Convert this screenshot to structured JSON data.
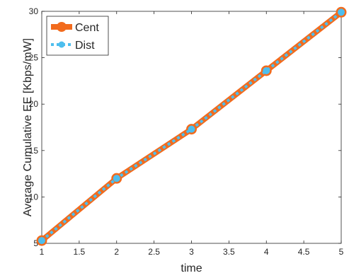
{
  "chart_data": {
    "type": "line",
    "xlabel": "time",
    "ylabel": "Average Cumulative EE [Kbps/mW]",
    "xlim": [
      1,
      5
    ],
    "ylim": [
      5,
      30
    ],
    "x_ticks": [
      "1",
      "1.5",
      "2",
      "2.5",
      "3",
      "3.5",
      "4",
      "4.5",
      "5"
    ],
    "y_ticks": [
      "5",
      "10",
      "15",
      "20",
      "25",
      "30"
    ],
    "x": [
      1,
      2,
      3,
      4,
      5
    ],
    "series": [
      {
        "name": "Cent",
        "values": [
          5.3,
          12.0,
          17.3,
          23.6,
          29.9
        ],
        "color": "#F26B1D",
        "style": "solid",
        "marker": "circle"
      },
      {
        "name": "Dist",
        "values": [
          5.3,
          12.0,
          17.3,
          23.6,
          29.9
        ],
        "color": "#4DBEEE",
        "style": "dotted",
        "marker": "circle"
      }
    ],
    "legend": {
      "placement": "top-left"
    },
    "grid": false,
    "box": true
  }
}
